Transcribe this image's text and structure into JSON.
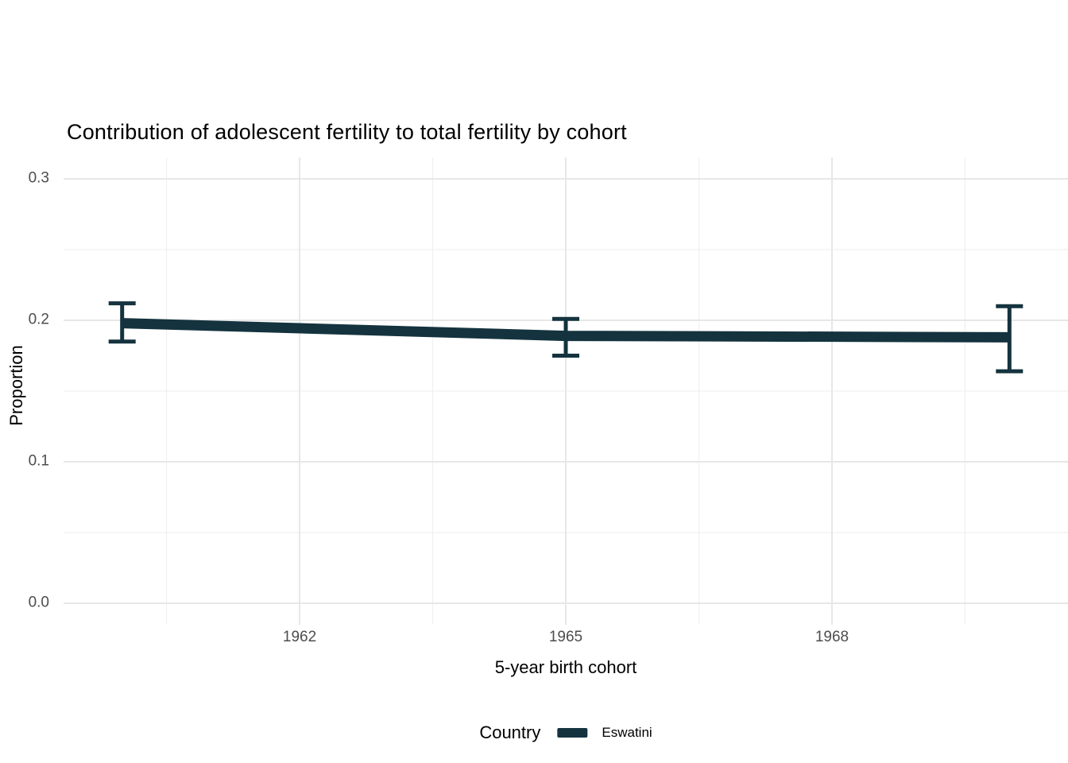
{
  "chart_data": {
    "type": "line",
    "title": "Contribution of adolescent fertility to total fertility by cohort",
    "xlabel": "5-year birth cohort",
    "ylabel": "Proportion",
    "xlim": [
      1959.34,
      1970.66
    ],
    "ylim": [
      -0.0152,
      0.3152
    ],
    "grid": "on",
    "x_ticks": [
      {
        "v": 1962,
        "label": "1962"
      },
      {
        "v": 1965,
        "label": "1965"
      },
      {
        "v": 1968,
        "label": "1968"
      }
    ],
    "x_minor": [
      1960.5,
      1963.5,
      1966.5,
      1969.5
    ],
    "y_ticks": [
      {
        "v": 0.0,
        "label": "0.0"
      },
      {
        "v": 0.1,
        "label": "0.1"
      },
      {
        "v": 0.2,
        "label": "0.2"
      },
      {
        "v": 0.3,
        "label": "0.3"
      }
    ],
    "y_minor": [
      0.05,
      0.15,
      0.25
    ],
    "series": [
      {
        "name": "Eswatini",
        "color": "#14333E",
        "points": [
          {
            "x": 1960,
            "y": 0.198,
            "ymin": 0.185,
            "ymax": 0.212
          },
          {
            "x": 1965,
            "y": 0.189,
            "ymin": 0.175,
            "ymax": 0.201
          },
          {
            "x": 1970,
            "y": 0.188,
            "ymin": 0.164,
            "ymax": 0.21
          }
        ]
      }
    ],
    "legend": {
      "title": "Country",
      "position": "bottom",
      "entries": [
        {
          "label": "Eswatini",
          "color": "#14333E"
        }
      ]
    },
    "colors": {
      "major_grid": "#E7E7E7",
      "minor_grid": "#F0F0F0",
      "tick_label": "#4d4d4d"
    }
  }
}
